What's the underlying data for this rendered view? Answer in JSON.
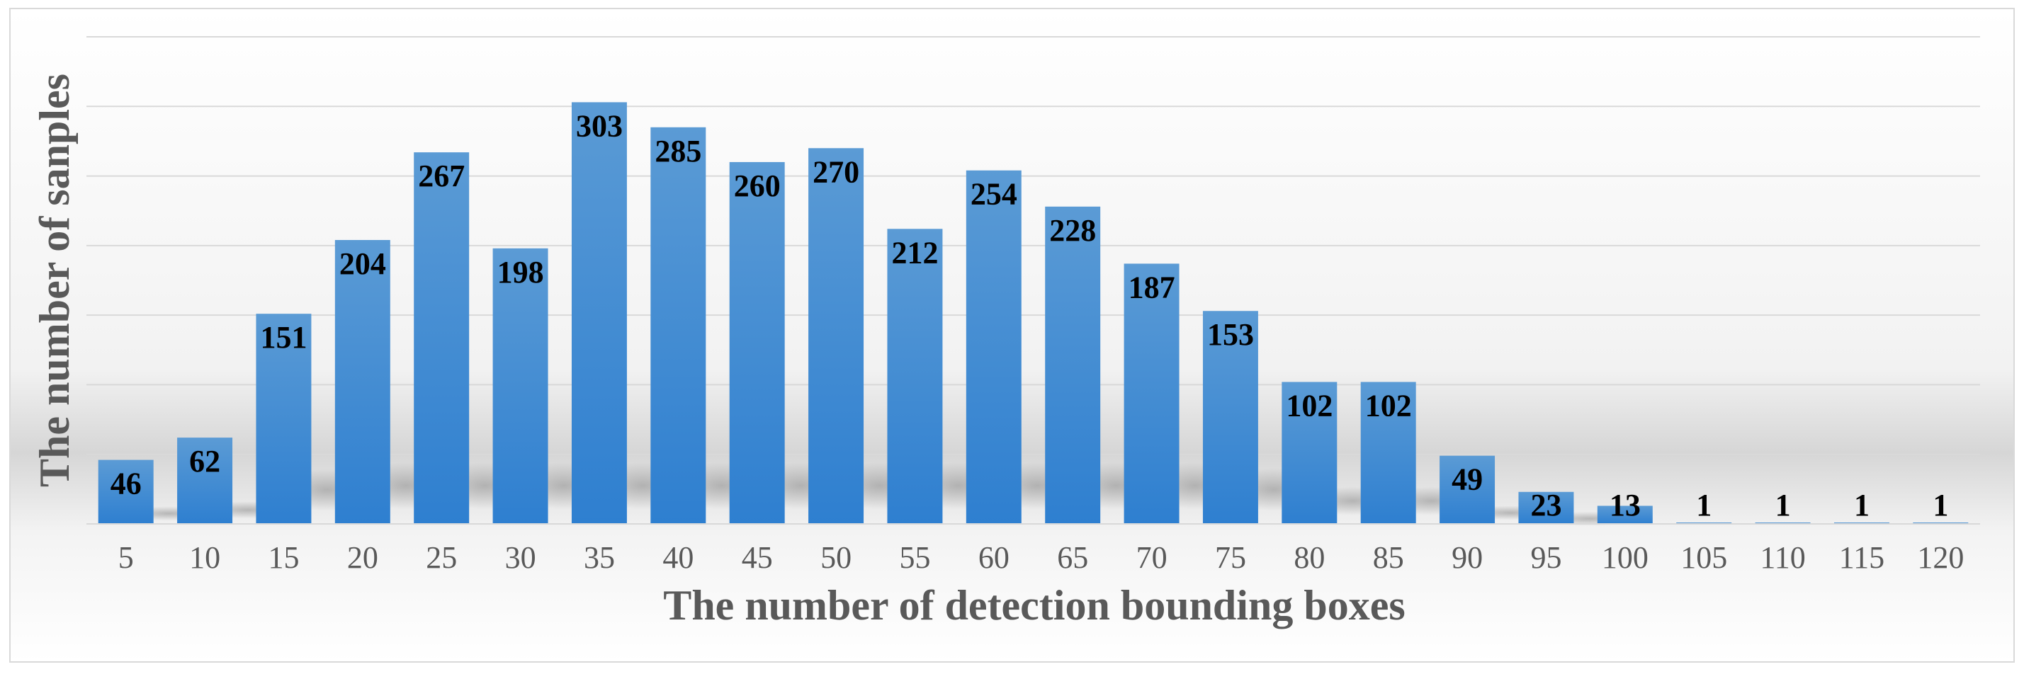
{
  "chart_data": {
    "type": "bar",
    "title": "",
    "xlabel": "The number of detection bounding boxes",
    "ylabel": "The number of sanples",
    "categories": [
      "5",
      "10",
      "15",
      "20",
      "25",
      "30",
      "35",
      "40",
      "45",
      "50",
      "55",
      "60",
      "65",
      "70",
      "75",
      "80",
      "85",
      "90",
      "95",
      "100",
      "105",
      "110",
      "115",
      "120"
    ],
    "values": [
      46,
      62,
      151,
      204,
      267,
      198,
      303,
      285,
      260,
      270,
      212,
      254,
      228,
      187,
      153,
      102,
      102,
      49,
      23,
      13,
      1,
      1,
      1,
      1
    ],
    "data_labels": [
      "46",
      "62",
      "151",
      "204",
      "267",
      "198",
      "303",
      "285",
      "260",
      "270",
      "212",
      "254",
      "228",
      "187",
      "153",
      "102",
      "102",
      "49",
      "23",
      "13",
      "1",
      "1",
      "1",
      "1"
    ],
    "ylim": [
      0,
      350
    ],
    "grid": true,
    "y_tick_labels_shown": false,
    "legend": "none",
    "colors": {
      "bar_top": "#5b9bd5",
      "bar_bottom": "#2e7fd0",
      "gridline": "#d9d9d9",
      "text": "#595959",
      "data_label": "#000000",
      "frame": "#d9d9d9"
    }
  }
}
